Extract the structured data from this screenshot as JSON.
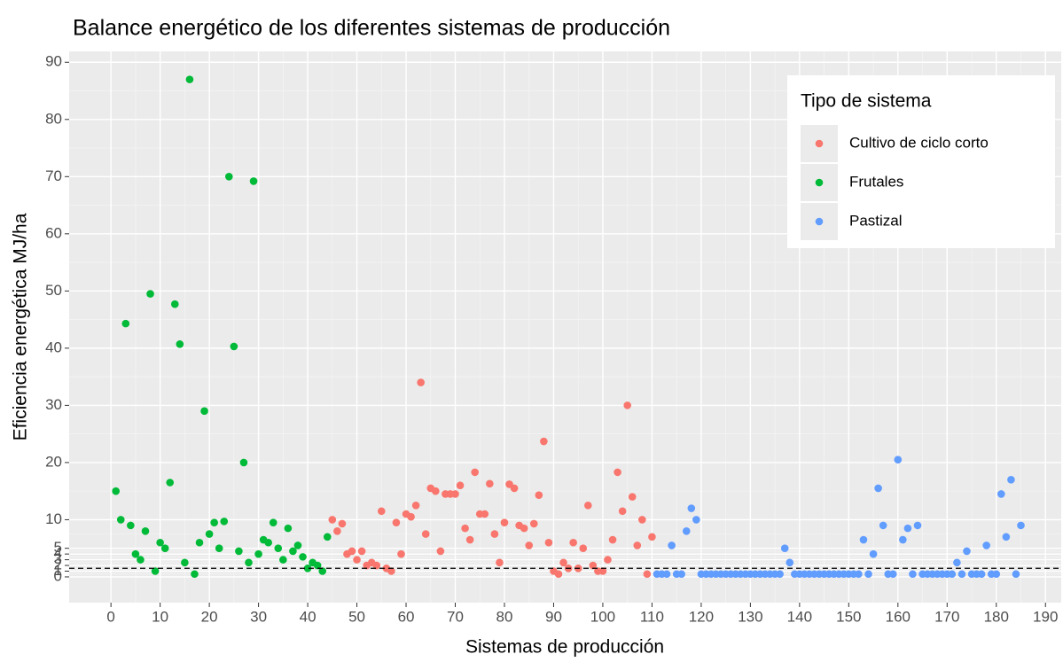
{
  "chart_data": {
    "type": "scatter",
    "title": "Balance energético de los diferentes sistemas de producción",
    "x_label": "Sistemas de producción",
    "y_label": "Eficiencia energética MJ/ha",
    "legend_title": "Tipo de sistema",
    "legend": "top-right",
    "grid": true,
    "hline": 1.5,
    "xlim": [
      -8.5,
      193.2
    ],
    "ylim": [
      -4.5,
      91.9
    ],
    "xticks": [
      0,
      10,
      20,
      30,
      40,
      50,
      60,
      70,
      80,
      90,
      100,
      110,
      120,
      130,
      140,
      150,
      160,
      170,
      180,
      190
    ],
    "yticks": [
      0,
      1,
      2,
      3,
      4,
      5,
      10,
      20,
      30,
      40,
      50,
      60,
      70,
      80,
      90
    ],
    "series": [
      {
        "name": "Cultivo de ciclo corto",
        "color": "#F8766D",
        "x": [
          45,
          46,
          47,
          48,
          49,
          50,
          51,
          52,
          53,
          54,
          55,
          56,
          57,
          58,
          59,
          60,
          61,
          62,
          63,
          64,
          65,
          66,
          67,
          68,
          69,
          70,
          71,
          72,
          73,
          74,
          75,
          76,
          77,
          78,
          79,
          80,
          81,
          82,
          83,
          84,
          85,
          86,
          87,
          88,
          89,
          90,
          91,
          92,
          93,
          94,
          95,
          96,
          97,
          98,
          99,
          100,
          101,
          102,
          103,
          104,
          105,
          106,
          107,
          108,
          109,
          110
        ],
        "values": [
          10,
          8,
          9.3,
          4,
          4.5,
          3,
          4.5,
          2,
          2.5,
          2,
          11.5,
          1.5,
          1,
          9.5,
          4,
          11,
          10.5,
          12.5,
          34,
          7.5,
          15.5,
          15,
          4.5,
          14.5,
          14.5,
          14.5,
          16,
          8.5,
          6.5,
          18.3,
          11,
          11,
          16.3,
          7.5,
          2.5,
          9.5,
          16.2,
          15.5,
          9,
          8.5,
          5.5,
          9.3,
          14.3,
          23.7,
          6,
          1,
          0.5,
          2.5,
          1.5,
          6,
          1.5,
          5,
          12.5,
          2,
          1,
          1,
          3,
          6.5,
          18.3,
          11.5,
          30,
          14,
          5.5,
          10,
          0.5,
          7
        ]
      },
      {
        "name": "Frutales",
        "color": "#00BA38",
        "x": [
          1,
          2,
          3,
          4,
          5,
          6,
          7,
          8,
          9,
          10,
          11,
          12,
          13,
          14,
          15,
          16,
          17,
          18,
          19,
          20,
          21,
          22,
          23,
          24,
          25,
          26,
          27,
          28,
          29,
          30,
          31,
          32,
          33,
          34,
          35,
          36,
          37,
          38,
          39,
          40,
          41,
          42,
          43,
          44
        ],
        "values": [
          15,
          10,
          44.3,
          9,
          4,
          3,
          8,
          49.5,
          1,
          6,
          5,
          16.5,
          47.7,
          40.7,
          2.5,
          87,
          0.5,
          6,
          29,
          7.5,
          9.5,
          5,
          9.7,
          70,
          40.3,
          4.5,
          20,
          2.5,
          69.2,
          4,
          6.5,
          6,
          9.5,
          5,
          3,
          8.5,
          4.5,
          5.5,
          3.5,
          1.5,
          2.5,
          2,
          1,
          7
        ]
      },
      {
        "name": "Pastizal",
        "color": "#619CFF",
        "x": [
          111,
          112,
          113,
          114,
          115,
          116,
          117,
          118,
          119,
          120,
          121,
          122,
          123,
          124,
          125,
          126,
          127,
          128,
          129,
          130,
          131,
          132,
          133,
          134,
          135,
          136,
          137,
          138,
          139,
          140,
          141,
          142,
          143,
          144,
          145,
          146,
          147,
          148,
          149,
          150,
          151,
          152,
          153,
          154,
          155,
          156,
          157,
          158,
          159,
          160,
          161,
          162,
          163,
          164,
          165,
          166,
          167,
          168,
          169,
          170,
          171,
          172,
          173,
          174,
          175,
          176,
          177,
          178,
          179,
          180,
          181,
          182,
          183,
          184,
          185
        ],
        "values": [
          0.5,
          0.5,
          0.5,
          5.5,
          0.5,
          0.5,
          8,
          12,
          10,
          0.5,
          0.5,
          0.5,
          0.5,
          0.5,
          0.5,
          0.5,
          0.5,
          0.5,
          0.5,
          0.5,
          0.5,
          0.5,
          0.5,
          0.5,
          0.5,
          0.5,
          5,
          2.5,
          0.5,
          0.5,
          0.5,
          0.5,
          0.5,
          0.5,
          0.5,
          0.5,
          0.5,
          0.5,
          0.5,
          0.5,
          0.5,
          0.5,
          6.5,
          0.5,
          4,
          15.5,
          9,
          0.5,
          0.5,
          20.5,
          6.5,
          8.5,
          0.5,
          9,
          0.5,
          0.5,
          0.5,
          0.5,
          0.5,
          0.5,
          0.5,
          2.5,
          0.5,
          4.5,
          0.5,
          0.5,
          0.5,
          5.5,
          0.5,
          0.5,
          14.5,
          7,
          17,
          0.5,
          9
        ]
      }
    ]
  }
}
